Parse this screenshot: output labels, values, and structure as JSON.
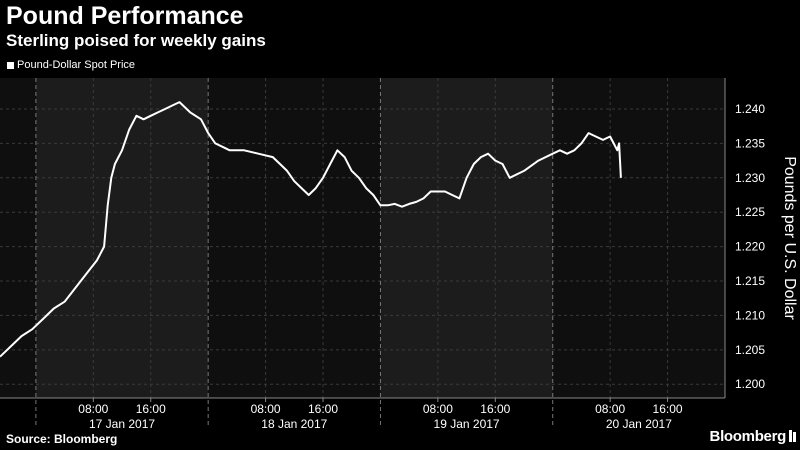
{
  "title": "Pound Performance",
  "subtitle": "Sterling poised for weekly gains",
  "source": "Source: Bloomberg",
  "brand": "Bloomberg",
  "colors": {
    "background": "#000000",
    "panel_dark": "#0f0f0f",
    "panel_light": "#1c1c1c",
    "line": "#ffffff",
    "grid": "#3a3a3a",
    "axis_text": "#ffffff"
  },
  "chart_data": {
    "type": "line",
    "series": [
      {
        "name": "Pound-Dollar Spot Price",
        "x": [
          "2017-01-16 19:00",
          "2017-01-16 20:30",
          "2017-01-16 22:00",
          "2017-01-16 23:30",
          "2017-01-17 01:00",
          "2017-01-17 02:30",
          "2017-01-17 04:00",
          "2017-01-17 05:30",
          "2017-01-17 07:00",
          "2017-01-17 08:30",
          "2017-01-17 09:30",
          "2017-01-17 10:00",
          "2017-01-17 10:30",
          "2017-01-17 11:00",
          "2017-01-17 12:00",
          "2017-01-17 13:00",
          "2017-01-17 14:00",
          "2017-01-17 15:00",
          "2017-01-17 16:00",
          "2017-01-17 17:00",
          "2017-01-17 18:00",
          "2017-01-17 19:00",
          "2017-01-17 20:00",
          "2017-01-17 21:30",
          "2017-01-17 23:00",
          "2017-01-18 00:00",
          "2017-01-18 01:00",
          "2017-01-18 02:00",
          "2017-01-18 03:00",
          "2017-01-18 05:00",
          "2017-01-18 07:00",
          "2017-01-18 09:00",
          "2017-01-18 10:00",
          "2017-01-18 11:00",
          "2017-01-18 12:00",
          "2017-01-18 13:00",
          "2017-01-18 14:00",
          "2017-01-18 15:00",
          "2017-01-18 16:00",
          "2017-01-18 17:00",
          "2017-01-18 18:00",
          "2017-01-18 19:00",
          "2017-01-18 20:00",
          "2017-01-18 21:00",
          "2017-01-18 22:00",
          "2017-01-18 23:00",
          "2017-01-19 00:00",
          "2017-01-19 01:00",
          "2017-01-19 02:00",
          "2017-01-19 03:00",
          "2017-01-19 04:00",
          "2017-01-19 05:00",
          "2017-01-19 06:00",
          "2017-01-19 07:00",
          "2017-01-19 08:00",
          "2017-01-19 09:00",
          "2017-01-19 10:00",
          "2017-01-19 11:00",
          "2017-01-19 12:00",
          "2017-01-19 13:00",
          "2017-01-19 14:00",
          "2017-01-19 15:00",
          "2017-01-19 16:00",
          "2017-01-19 17:00",
          "2017-01-19 18:00",
          "2017-01-19 20:00",
          "2017-01-19 22:00",
          "2017-01-20 00:00",
          "2017-01-20 01:00",
          "2017-01-20 02:00",
          "2017-01-20 03:00",
          "2017-01-20 04:00",
          "2017-01-20 05:00",
          "2017-01-20 06:00",
          "2017-01-20 07:00",
          "2017-01-20 08:00",
          "2017-01-20 08:30",
          "2017-01-20 09:00",
          "2017-01-20 09:15",
          "2017-01-20 09:30"
        ],
        "values": [
          1.204,
          1.2055,
          1.207,
          1.208,
          1.2095,
          1.211,
          1.212,
          1.214,
          1.216,
          1.218,
          1.22,
          1.226,
          1.23,
          1.232,
          1.234,
          1.237,
          1.239,
          1.2385,
          1.239,
          1.2395,
          1.24,
          1.2405,
          1.241,
          1.2395,
          1.2385,
          1.2365,
          1.235,
          1.2345,
          1.234,
          1.234,
          1.2335,
          1.233,
          1.232,
          1.231,
          1.2295,
          1.2285,
          1.2275,
          1.2285,
          1.23,
          1.232,
          1.234,
          1.233,
          1.231,
          1.23,
          1.2285,
          1.2275,
          1.226,
          1.226,
          1.2262,
          1.2258,
          1.2262,
          1.2265,
          1.227,
          1.228,
          1.228,
          1.228,
          1.2275,
          1.227,
          1.23,
          1.232,
          1.233,
          1.2335,
          1.2325,
          1.232,
          1.23,
          1.231,
          1.2325,
          1.2335,
          1.234,
          1.2335,
          1.234,
          1.235,
          1.2365,
          1.236,
          1.2355,
          1.236,
          1.235,
          1.234,
          1.235,
          1.23
        ]
      }
    ],
    "x_tick_labels": [
      {
        "x": "2017-01-17 08:00",
        "label": "08:00"
      },
      {
        "x": "2017-01-17 16:00",
        "label": "16:00"
      },
      {
        "x": "2017-01-18 08:00",
        "label": "08:00"
      },
      {
        "x": "2017-01-18 16:00",
        "label": "16:00"
      },
      {
        "x": "2017-01-19 08:00",
        "label": "08:00"
      },
      {
        "x": "2017-01-19 16:00",
        "label": "16:00"
      },
      {
        "x": "2017-01-20 08:00",
        "label": "08:00"
      },
      {
        "x": "2017-01-20 16:00",
        "label": "16:00"
      }
    ],
    "day_labels": [
      {
        "label": "17 Jan 2017",
        "start": "2017-01-17 00:00",
        "end": "2017-01-18 00:00"
      },
      {
        "label": "18 Jan 2017",
        "start": "2017-01-18 00:00",
        "end": "2017-01-19 00:00"
      },
      {
        "label": "19 Jan 2017",
        "start": "2017-01-19 00:00",
        "end": "2017-01-20 00:00"
      },
      {
        "label": "20 Jan 2017",
        "start": "2017-01-20 00:00",
        "end": "2017-01-21 00:00"
      }
    ],
    "xlim": [
      "2017-01-16 19:00",
      "2017-01-21 00:00"
    ],
    "y_ticks": [
      1.2,
      1.205,
      1.21,
      1.215,
      1.22,
      1.225,
      1.23,
      1.235,
      1.24
    ],
    "y_tick_labels": [
      "1.200",
      "1.205",
      "1.210",
      "1.215",
      "1.220",
      "1.225",
      "1.230",
      "1.235",
      "1.240"
    ],
    "ylim": [
      1.198,
      1.2445
    ],
    "ylabel": "Pounds per U.S. Dollar",
    "xlabel": "",
    "grid": true,
    "legend_position": "top-left",
    "y_axis_side": "right"
  }
}
